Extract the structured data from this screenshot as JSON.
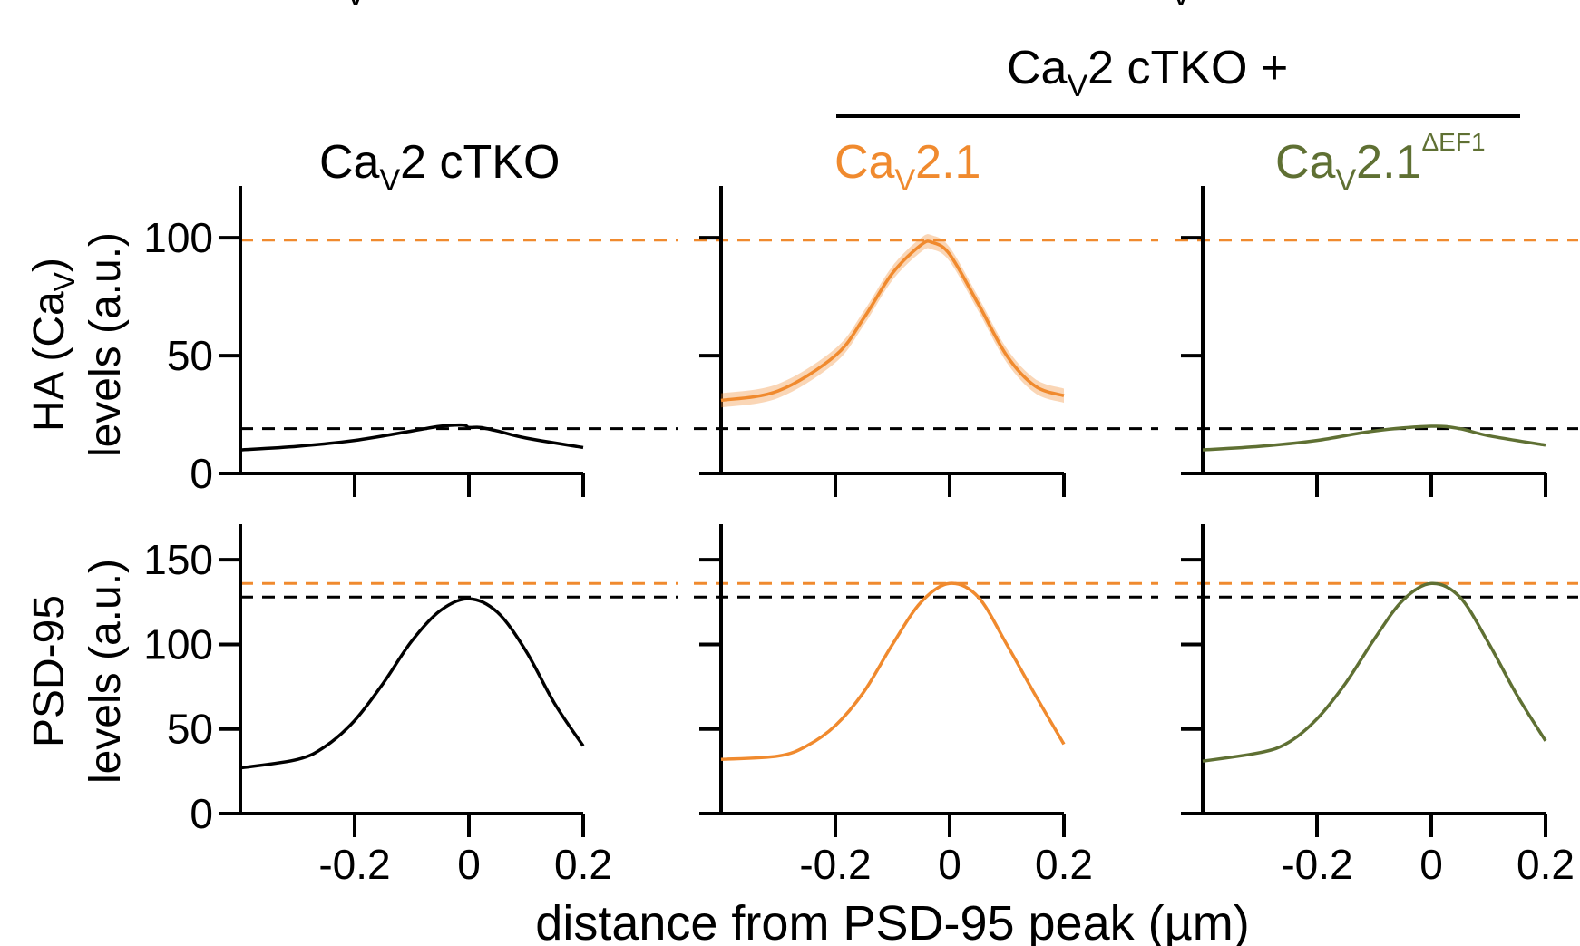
{
  "colors": {
    "black": "#000000",
    "orange": "#F08A2E",
    "olive": "#5F7033"
  },
  "figure": {
    "group_header": "Ca",
    "group_header_sub": "V",
    "group_header_rest": "2 cTKO +",
    "cut_top_label_left_sub": "V",
    "cut_top_label_right_sub": "V",
    "panel_titles": [
      {
        "main": "Ca",
        "sub": "V",
        "rest": "2 cTKO",
        "sup": "",
        "color": "#000000"
      },
      {
        "main": "Ca",
        "sub": "V",
        "rest": "2.1",
        "sup": "",
        "color": "#F08A2E"
      },
      {
        "main": "Ca",
        "sub": "V",
        "rest": "2.1",
        "sup": "ΔEF1",
        "color": "#5F7033"
      }
    ],
    "row_labels": {
      "top_line1_a": "HA (Ca",
      "top_line1_sub": "V",
      "top_line1_b": ")",
      "top_line2": "levels (a.u.)",
      "bottom_line1": "PSD-95",
      "bottom_line2": "levels (a.u.)"
    },
    "x_axis_label": "distance from PSD-95 peak (µm)"
  },
  "chart_data": [
    {
      "type": "line",
      "row": "HA",
      "condition": "Cav2 cTKO",
      "color": "#000000",
      "x": [
        -0.4,
        -0.3,
        -0.2,
        -0.1,
        -0.05,
        -0.01,
        0.0,
        0.02,
        0.05,
        0.1,
        0.2
      ],
      "y": [
        10,
        11.5,
        14,
        18,
        20,
        20.5,
        19.5,
        19.5,
        18,
        15,
        11
      ],
      "ref_lines": [
        {
          "y": 99,
          "color": "#F08A2E"
        },
        {
          "y": 19,
          "color": "#000000"
        }
      ],
      "yticks": [
        0,
        50,
        100
      ],
      "ylim": [
        0,
        122
      ],
      "xlim": [
        -0.4,
        0.2
      ]
    },
    {
      "type": "line",
      "row": "HA",
      "condition": "Cav2 cTKO + Cav2.1",
      "color": "#F08A2E",
      "x": [
        -0.4,
        -0.3,
        -0.2,
        -0.15,
        -0.1,
        -0.05,
        -0.03,
        0.0,
        0.05,
        0.1,
        0.15,
        0.2
      ],
      "y": [
        31,
        35,
        50,
        66,
        85,
        97,
        98,
        93,
        72,
        50,
        37,
        33
      ],
      "sem_band": 3,
      "ref_lines": [
        {
          "y": 99,
          "color": "#F08A2E"
        },
        {
          "y": 19,
          "color": "#000000"
        }
      ],
      "yticks": [
        0,
        50,
        100
      ],
      "ylim": [
        0,
        122
      ],
      "xlim": [
        -0.4,
        0.2
      ]
    },
    {
      "type": "line",
      "row": "HA",
      "condition": "Cav2 cTKO + Cav2.1ΔEF1",
      "color": "#5F7033",
      "x": [
        -0.4,
        -0.3,
        -0.2,
        -0.1,
        0.0,
        0.05,
        0.1,
        0.2
      ],
      "y": [
        10,
        11.5,
        14,
        18,
        20,
        19,
        16,
        12
      ],
      "ref_lines": [
        {
          "y": 99,
          "color": "#F08A2E"
        },
        {
          "y": 19,
          "color": "#000000"
        }
      ],
      "yticks": [
        0,
        50,
        100
      ],
      "ylim": [
        0,
        122
      ],
      "xlim": [
        -0.4,
        0.2
      ]
    },
    {
      "type": "line",
      "row": "PSD-95",
      "condition": "Cav2 cTKO",
      "color": "#000000",
      "x": [
        -0.4,
        -0.3,
        -0.25,
        -0.2,
        -0.15,
        -0.1,
        -0.05,
        0.0,
        0.05,
        0.1,
        0.15,
        0.2
      ],
      "y": [
        27,
        32,
        40,
        55,
        77,
        102,
        120,
        127,
        119,
        96,
        65,
        40
      ],
      "ref_lines": [
        {
          "y": 136,
          "color": "#F08A2E"
        },
        {
          "y": 128,
          "color": "#000000"
        }
      ],
      "xticks": [
        -0.2,
        0,
        0.2
      ],
      "xtick_labels": [
        "-0.2",
        "0",
        "0.2"
      ],
      "yticks": [
        0,
        50,
        100,
        150
      ],
      "ylim": [
        0,
        171
      ],
      "xlim": [
        -0.4,
        0.2
      ]
    },
    {
      "type": "line",
      "row": "PSD-95",
      "condition": "Cav2 cTKO + Cav2.1",
      "color": "#F08A2E",
      "x": [
        -0.4,
        -0.3,
        -0.25,
        -0.2,
        -0.15,
        -0.1,
        -0.05,
        0.0,
        0.05,
        0.1,
        0.15,
        0.2
      ],
      "y": [
        32,
        34,
        40,
        52,
        72,
        100,
        125,
        136,
        128,
        100,
        70,
        41
      ],
      "ref_lines": [
        {
          "y": 136,
          "color": "#F08A2E"
        },
        {
          "y": 128,
          "color": "#000000"
        }
      ],
      "xticks": [
        -0.2,
        0,
        0.2
      ],
      "xtick_labels": [
        "-0.2",
        "0",
        "0.2"
      ],
      "yticks": [
        0,
        50,
        100,
        150
      ],
      "ylim": [
        0,
        171
      ],
      "xlim": [
        -0.4,
        0.2
      ]
    },
    {
      "type": "line",
      "row": "PSD-95",
      "condition": "Cav2 cTKO + Cav2.1ΔEF1",
      "color": "#5F7033",
      "x": [
        -0.4,
        -0.3,
        -0.25,
        -0.2,
        -0.15,
        -0.1,
        -0.05,
        0.0,
        0.05,
        0.1,
        0.15,
        0.2
      ],
      "y": [
        31,
        36,
        42,
        56,
        77,
        103,
        126,
        136,
        128,
        101,
        70,
        43
      ],
      "ref_lines": [
        {
          "y": 136,
          "color": "#F08A2E"
        },
        {
          "y": 128,
          "color": "#000000"
        }
      ],
      "xticks": [
        -0.2,
        0,
        0.2
      ],
      "xtick_labels": [
        "-0.2",
        "0",
        "0.2"
      ],
      "yticks": [
        0,
        50,
        100,
        150
      ],
      "ylim": [
        0,
        171
      ],
      "xlim": [
        -0.4,
        0.2
      ]
    }
  ]
}
